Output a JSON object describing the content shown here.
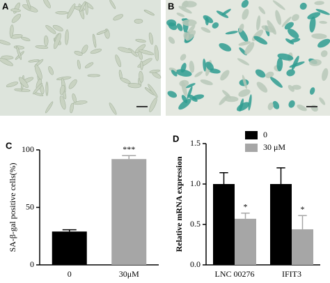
{
  "images": [
    {
      "label": "A"
    },
    {
      "label": "B"
    }
  ],
  "chart_data": [
    {
      "type": "bar",
      "label": "C",
      "ylabel": "SA-β-gal positive cells(%)",
      "categories": [
        "0",
        "30μM"
      ],
      "values": [
        29,
        92
      ],
      "errors": [
        1.5,
        3
      ],
      "colors": [
        "#000000",
        "#a6a6a6"
      ],
      "value_annotations": [
        null,
        "***"
      ],
      "ylim": [
        0,
        100
      ],
      "yticks": [
        0,
        50,
        100
      ]
    },
    {
      "type": "grouped-bar",
      "label": "D",
      "ylabel": "Relative mRNA expression",
      "categories": [
        "LNC 00276",
        "IFIT3"
      ],
      "series": [
        {
          "name": "0",
          "color": "#000000",
          "values": [
            1.0,
            1.0
          ],
          "errors": [
            0.14,
            0.2
          ],
          "value_annotations": [
            null,
            null
          ]
        },
        {
          "name": "30 μM",
          "color": "#a6a6a6",
          "values": [
            0.57,
            0.44
          ],
          "errors": [
            0.07,
            0.17
          ],
          "value_annotations": [
            "*",
            "*"
          ]
        }
      ],
      "ylim": [
        0,
        1.5
      ],
      "yticks": [
        {
          "value": 0,
          "label": "0.0"
        },
        0.5,
        {
          "value": 1,
          "label": "1.0"
        },
        {
          "value": 1.5,
          "label": "1.5"
        }
      ],
      "legend": "top-right"
    }
  ]
}
